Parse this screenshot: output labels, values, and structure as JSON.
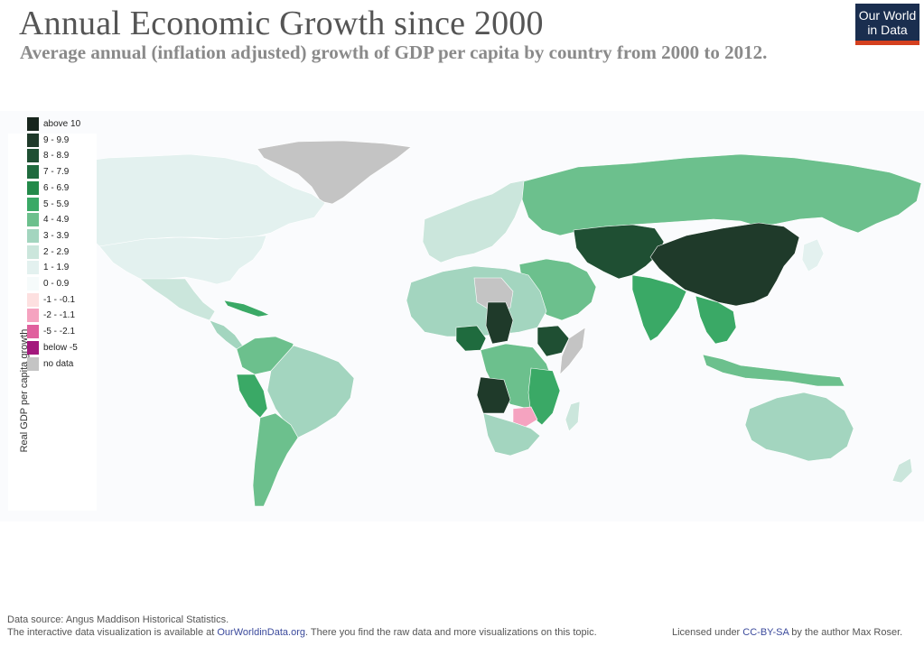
{
  "header": {
    "title": "Annual Economic Growth since 2000",
    "subtitle": "Average annual (inflation adjusted) growth of GDP per capita by country from 2000 to 2012."
  },
  "logo": {
    "line1": "Our World",
    "line2": "in Data",
    "bg_color": "#1a2e4f",
    "accent_color": "#d4401f"
  },
  "map": {
    "type": "choropleth",
    "metric": "Real GDP per capita growth",
    "legend": {
      "title": "Real GDP per capita growth",
      "placement": "left",
      "items": [
        {
          "label": "above 10",
          "color": "#17251d"
        },
        {
          "label": "9 - 9.9",
          "color": "#1f3a2a"
        },
        {
          "label": "8 - 8.9",
          "color": "#1f4f33"
        },
        {
          "label": "7 - 7.9",
          "color": "#1f6b3e"
        },
        {
          "label": "6 - 6.9",
          "color": "#238a4a"
        },
        {
          "label": "5 - 5.9",
          "color": "#3aa966"
        },
        {
          "label": "4 - 4.9",
          "color": "#6cc08d"
        },
        {
          "label": "3 - 3.9",
          "color": "#a3d5bf"
        },
        {
          "label": "2 - 2.9",
          "color": "#cbe6dc"
        },
        {
          "label": "1 - 1.9",
          "color": "#e3f1ef"
        },
        {
          "label": "0 - 0.9",
          "color": "#f6fbfb"
        },
        {
          "label": "-1 - -0.1",
          "color": "#fde0e0"
        },
        {
          "label": "-2 - -1.1",
          "color": "#f5a3c0"
        },
        {
          "label": "-5 - -2.1",
          "color": "#e0609e"
        },
        {
          "label": "below -5",
          "color": "#a3187c"
        },
        {
          "label": "no data",
          "color": "#c4c4c4"
        }
      ]
    }
  },
  "footer": {
    "source": "Data source: Angus Maddison Historical Statistics.",
    "interactive_prefix": "The interactive data visualization is available at ",
    "interactive_link": "OurWorldinData.org",
    "interactive_suffix": ". There you find the raw data and more visualizations on this topic.",
    "license_prefix": "Licensed under ",
    "license_link": "CC-BY-SA",
    "license_suffix": " by the author Max Roser."
  }
}
